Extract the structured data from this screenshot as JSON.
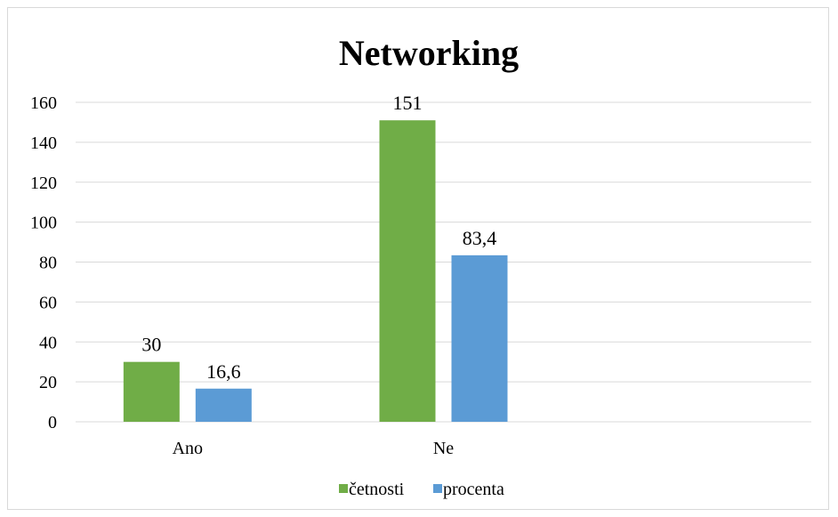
{
  "chart_data": {
    "type": "bar",
    "title": "Networking",
    "categories": [
      "Ano",
      "Ne"
    ],
    "series": [
      {
        "name": "četnosti",
        "values": [
          30,
          151
        ],
        "labels": [
          "30",
          "151"
        ],
        "color": "#70ad47"
      },
      {
        "name": "procenta",
        "values": [
          16.6,
          83.4
        ],
        "labels": [
          "16,6",
          "83,4"
        ],
        "color": "#5b9bd5"
      }
    ],
    "yticks": [
      "0",
      "20",
      "40",
      "60",
      "80",
      "100",
      "120",
      "140",
      "160"
    ],
    "ylim": [
      0,
      160
    ],
    "grid": true,
    "legend": "bottom",
    "gridColor": "#d9d9d9"
  }
}
